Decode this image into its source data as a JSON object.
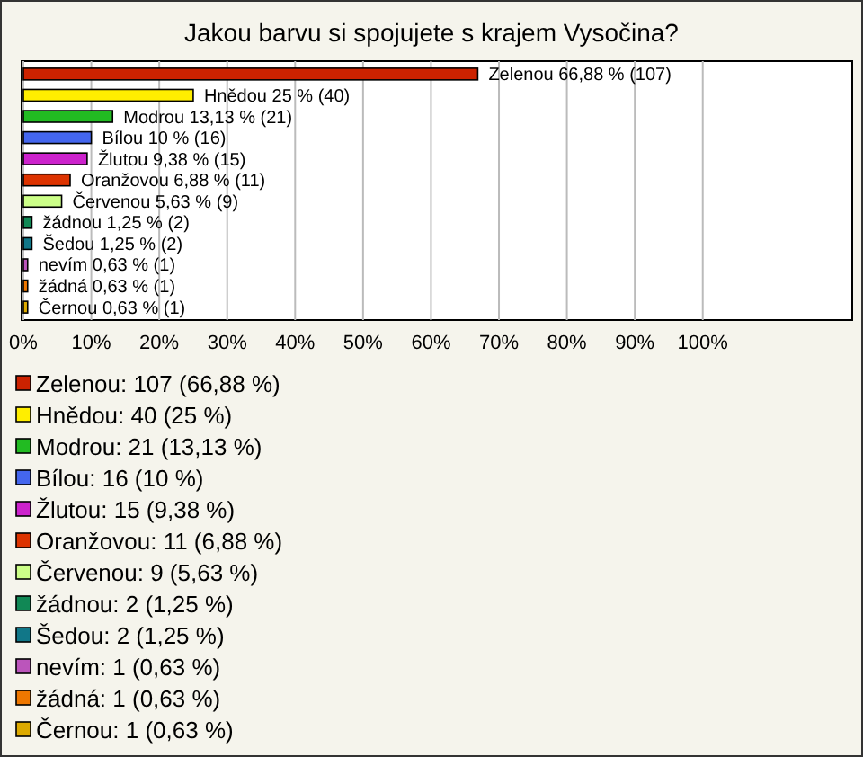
{
  "chart_data": {
    "type": "bar",
    "orientation": "horizontal",
    "title": "Jakou barvu si spojujete s krajem Vysočina?",
    "categories": [
      null,
      null,
      null,
      null,
      null,
      null,
      null,
      null,
      null,
      null,
      null,
      null
    ],
    "series": [
      {
        "name": "Zelenou: 107 (66,88 %)",
        "color": "#cc2200",
        "values": [
          66.88,
          null,
          null,
          null,
          null,
          null,
          null,
          null,
          null,
          null,
          null,
          null
        ],
        "value_labels": [
          "Zelenou 66,88 % (107)",
          null,
          null,
          null,
          null,
          null,
          null,
          null,
          null,
          null,
          null,
          null
        ]
      },
      {
        "name": "Hnědou: 40 (25 %)",
        "color": "#ffee00",
        "values": [
          null,
          25,
          null,
          null,
          null,
          null,
          null,
          null,
          null,
          null,
          null,
          null
        ],
        "value_labels": [
          null,
          "Hnědou 25 % (40)",
          null,
          null,
          null,
          null,
          null,
          null,
          null,
          null,
          null,
          null
        ]
      },
      {
        "name": "Modrou: 21 (13,13 %)",
        "color": "#22bb22",
        "values": [
          null,
          null,
          13.13,
          null,
          null,
          null,
          null,
          null,
          null,
          null,
          null,
          null
        ],
        "value_labels": [
          null,
          null,
          "Modrou 13,13 % (21)",
          null,
          null,
          null,
          null,
          null,
          null,
          null,
          null,
          null
        ]
      },
      {
        "name": "Bílou: 16 (10 %)",
        "color": "#4466ee",
        "values": [
          null,
          null,
          null,
          10,
          null,
          null,
          null,
          null,
          null,
          null,
          null,
          null
        ],
        "value_labels": [
          null,
          null,
          null,
          "Bílou 10 % (16)",
          null,
          null,
          null,
          null,
          null,
          null,
          null,
          null
        ]
      },
      {
        "name": "Žlutou: 15 (9,38 %)",
        "color": "#cc22cc",
        "values": [
          null,
          null,
          null,
          null,
          9.38,
          null,
          null,
          null,
          null,
          null,
          null,
          null
        ],
        "value_labels": [
          null,
          null,
          null,
          null,
          "Žlutou 9,38 % (15)",
          null,
          null,
          null,
          null,
          null,
          null,
          null
        ]
      },
      {
        "name": "Oranžovou: 11 (6,88 %)",
        "color": "#dd3300",
        "values": [
          null,
          null,
          null,
          null,
          null,
          6.88,
          null,
          null,
          null,
          null,
          null,
          null
        ],
        "value_labels": [
          null,
          null,
          null,
          null,
          null,
          "Oranžovou 6,88 % (11)",
          null,
          null,
          null,
          null,
          null,
          null
        ]
      },
      {
        "name": "Červenou: 9 (5,63 %)",
        "color": "#ccff88",
        "values": [
          null,
          null,
          null,
          null,
          null,
          null,
          5.63,
          null,
          null,
          null,
          null,
          null
        ],
        "value_labels": [
          null,
          null,
          null,
          null,
          null,
          null,
          "Červenou 5,63 % (9)",
          null,
          null,
          null,
          null,
          null
        ]
      },
      {
        "name": "žádnou: 2 (1,25 %)",
        "color": "#118855",
        "values": [
          null,
          null,
          null,
          null,
          null,
          null,
          null,
          1.25,
          null,
          null,
          null,
          null
        ],
        "value_labels": [
          null,
          null,
          null,
          null,
          null,
          null,
          null,
          "žádnou 1,25 % (2)",
          null,
          null,
          null,
          null
        ]
      },
      {
        "name": "Šedou: 2 (1,25 %)",
        "color": "#117788",
        "values": [
          null,
          null,
          null,
          null,
          null,
          null,
          null,
          null,
          1.25,
          null,
          null,
          null
        ],
        "value_labels": [
          null,
          null,
          null,
          null,
          null,
          null,
          null,
          null,
          "Šedou 1,25 % (2)",
          null,
          null,
          null
        ]
      },
      {
        "name": "nevím: 1 (0,63 %)",
        "color": "#bb55bb",
        "values": [
          null,
          null,
          null,
          null,
          null,
          null,
          null,
          null,
          null,
          0.63,
          null,
          null
        ],
        "value_labels": [
          null,
          null,
          null,
          null,
          null,
          null,
          null,
          null,
          null,
          "nevím 0,63 % (1)",
          null,
          null
        ]
      },
      {
        "name": "žádná: 1 (0,63 %)",
        "color": "#ee7700",
        "values": [
          null,
          null,
          null,
          null,
          null,
          null,
          null,
          null,
          null,
          null,
          0.63,
          null
        ],
        "value_labels": [
          null,
          null,
          null,
          null,
          null,
          null,
          null,
          null,
          null,
          null,
          "žádná 0,63 % (1)",
          null
        ]
      },
      {
        "name": "Černou: 1 (0,63 %)",
        "color": "#ddaa00",
        "values": [
          null,
          null,
          null,
          null,
          null,
          null,
          null,
          null,
          null,
          null,
          null,
          0.63
        ],
        "value_labels": [
          null,
          null,
          null,
          null,
          null,
          null,
          null,
          null,
          null,
          null,
          null,
          "Černou 0,63 % (1)"
        ]
      }
    ],
    "xlim": [
      0,
      122
    ],
    "xticks": [
      {
        "value": 0,
        "label": "0%"
      },
      {
        "value": 10,
        "label": "10%"
      },
      {
        "value": 20,
        "label": "20%"
      },
      {
        "value": 30,
        "label": "30%"
      },
      {
        "value": 40,
        "label": "40%"
      },
      {
        "value": 50,
        "label": "50%"
      },
      {
        "value": 60,
        "label": "60%"
      },
      {
        "value": 70,
        "label": "70%"
      },
      {
        "value": 80,
        "label": "80%"
      },
      {
        "value": 90,
        "label": "90%"
      },
      {
        "value": 100,
        "label": "100%"
      }
    ],
    "grid": "x",
    "legend": "bottom",
    "tick_labels": "x"
  }
}
